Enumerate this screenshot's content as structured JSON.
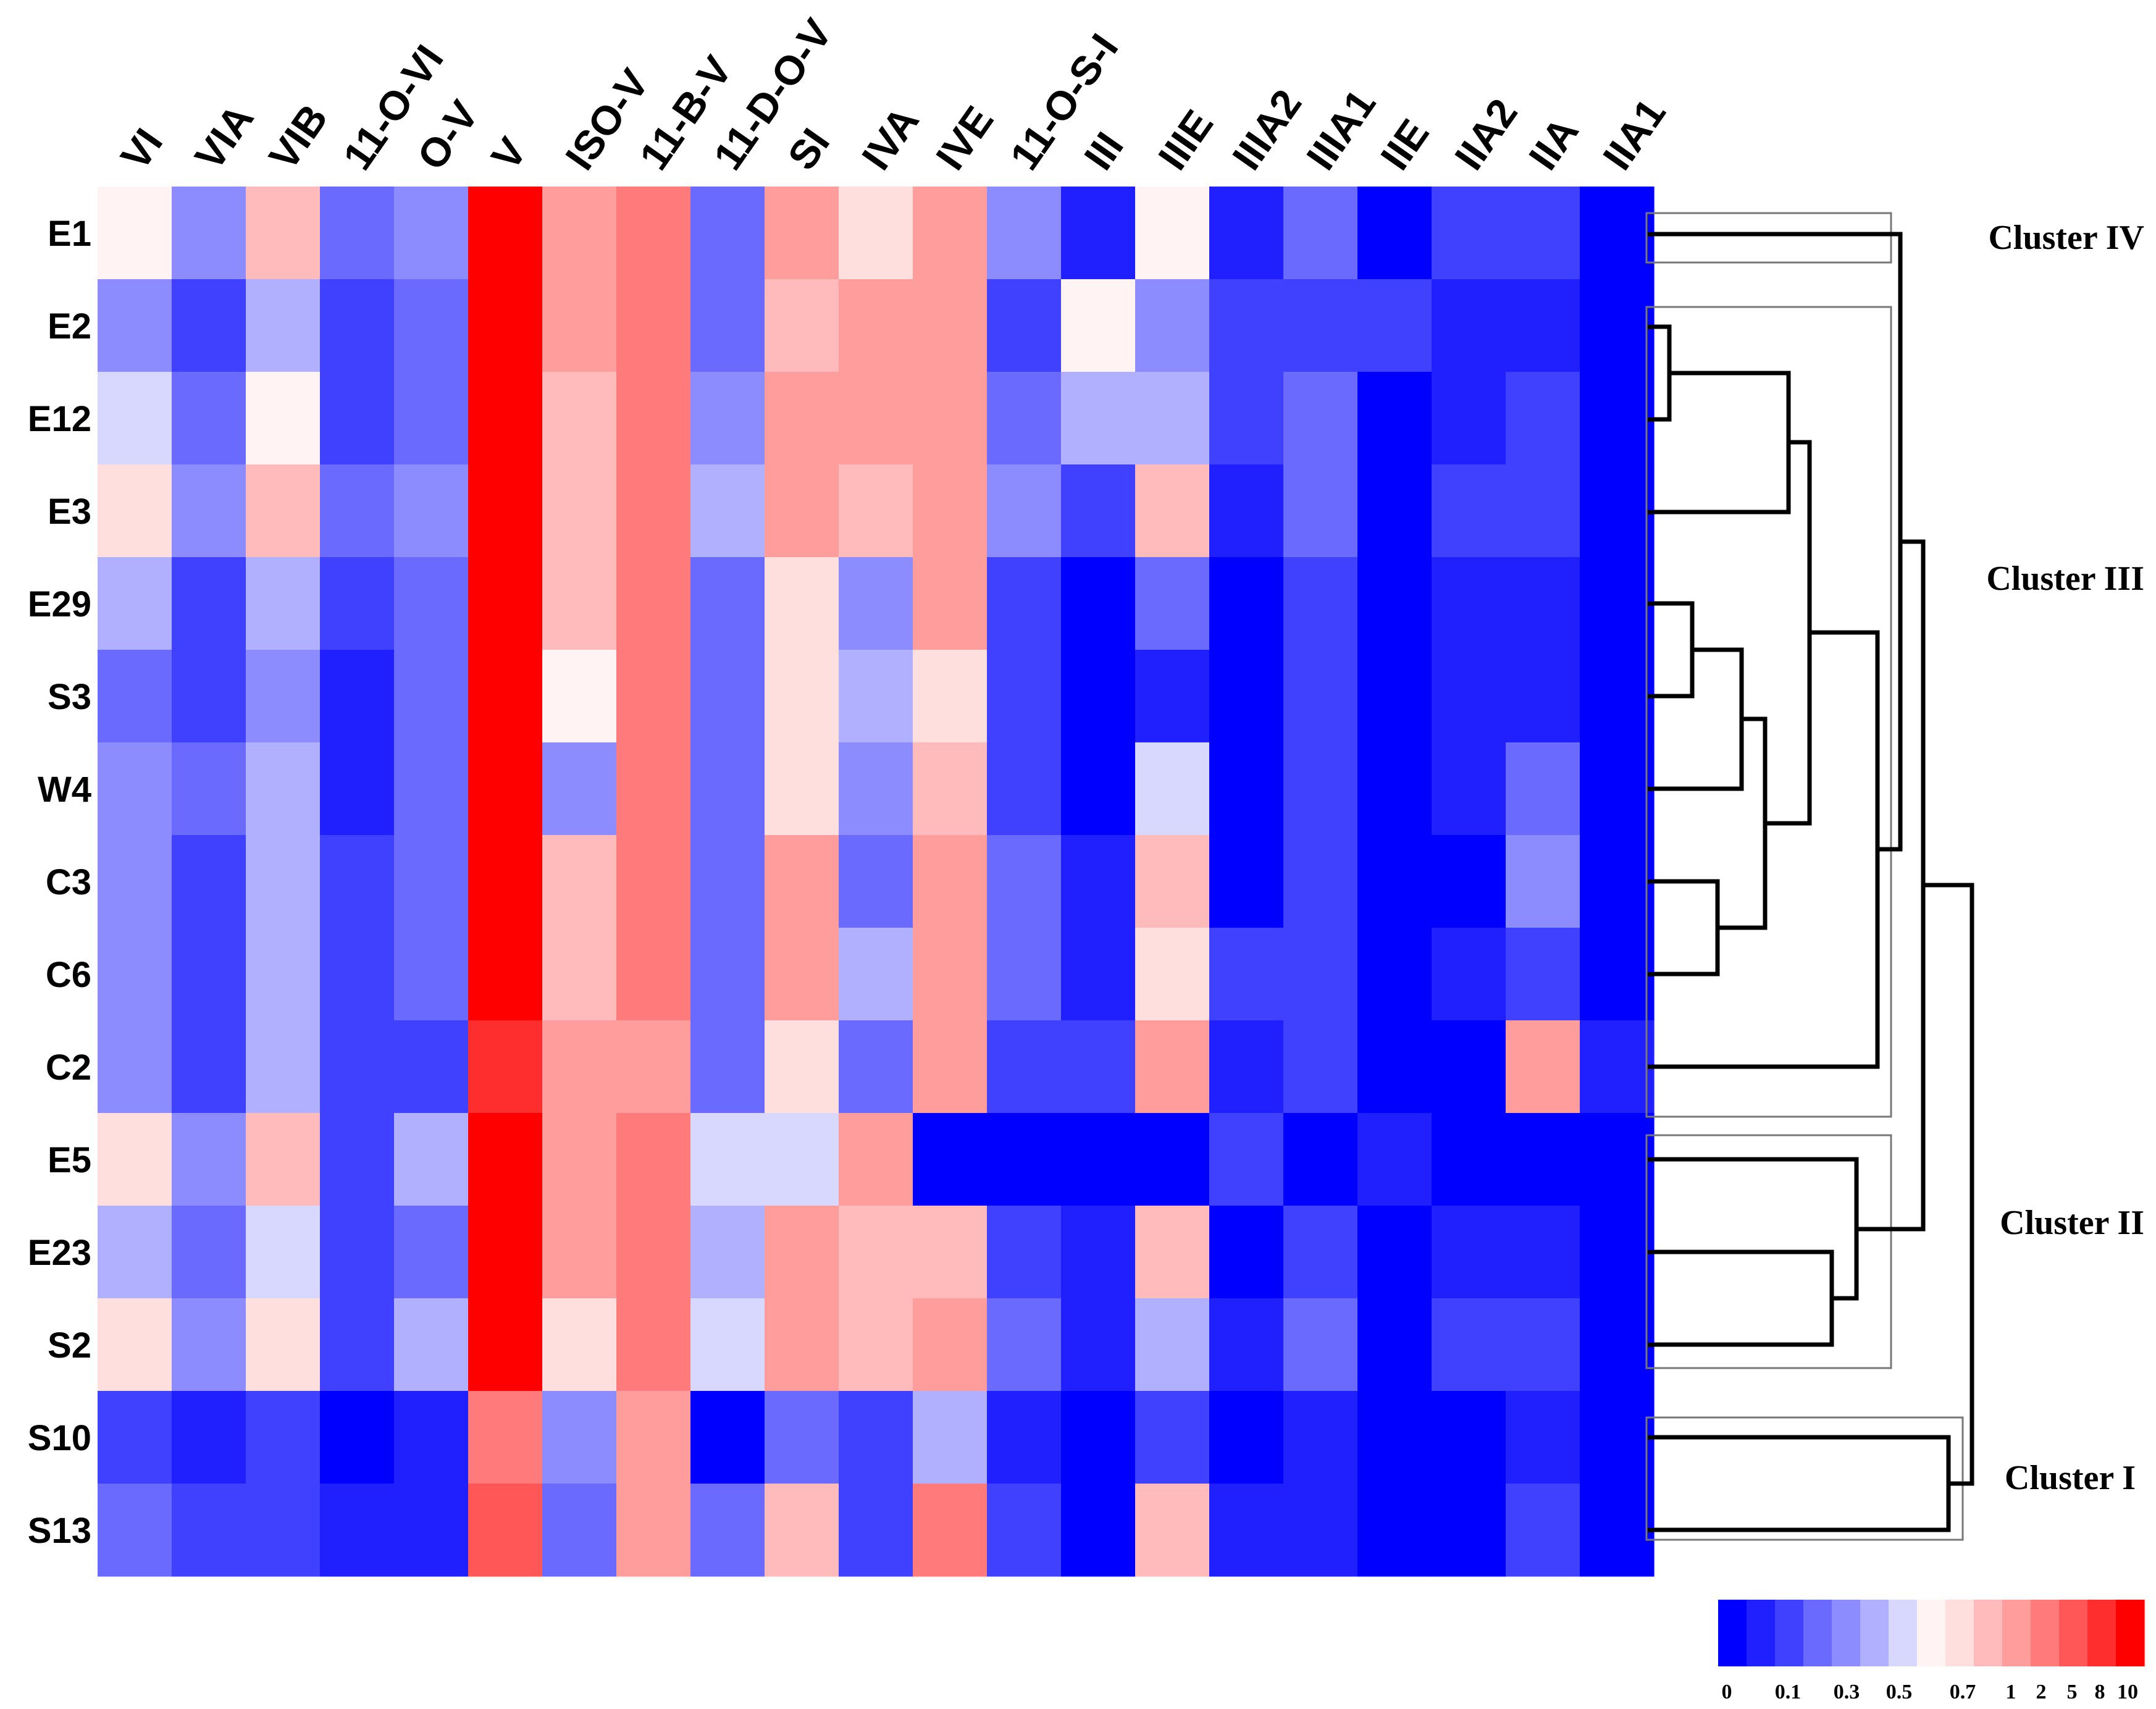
{
  "chart_data": {
    "type": "heatmap",
    "title": "",
    "columns": [
      "VI",
      "VIA",
      "VIB",
      "11-O-VI",
      "O-V",
      "V",
      "ISO-V",
      "11-B-V",
      "11-D-O-V",
      "SI",
      "IVA",
      "IVE",
      "11-O-S-I",
      "III",
      "IIIE",
      "IIIA2",
      "IIIA1",
      "IIE",
      "IIA2",
      "IIA",
      "IIA1"
    ],
    "rows": [
      "E1",
      "E2",
      "E12",
      "E3",
      "E29",
      "S3",
      "W4",
      "C3",
      "C6",
      "C2",
      "E5",
      "E23",
      "S2",
      "S10",
      "S13"
    ],
    "color_scale": {
      "bin_colors": [
        "#0000ff",
        "#2020ff",
        "#4040ff",
        "#6a6aff",
        "#8c8cff",
        "#b0b0ff",
        "#d8d8ff",
        "#fff3f3",
        "#ffdede",
        "#ffbbbb",
        "#ff9c9c",
        "#ff7a7a",
        "#ff5757",
        "#ff2e2e",
        "#ff0000"
      ],
      "tick_labels": [
        "0",
        "0.1",
        "0.3",
        "0.5",
        "0.7",
        "1",
        "2",
        "5",
        "8",
        "10"
      ]
    },
    "values_bin_index": [
      [
        7,
        4,
        9,
        3,
        4,
        14,
        10,
        11,
        3,
        10,
        8,
        10,
        4,
        1,
        7,
        1,
        3,
        0,
        2,
        2,
        0
      ],
      [
        4,
        2,
        5,
        2,
        3,
        14,
        10,
        11,
        3,
        9,
        10,
        10,
        2,
        7,
        4,
        2,
        2,
        2,
        1,
        1,
        0
      ],
      [
        6,
        3,
        7,
        2,
        3,
        14,
        9,
        11,
        4,
        10,
        10,
        10,
        3,
        5,
        5,
        2,
        3,
        0,
        1,
        2,
        0
      ],
      [
        8,
        4,
        9,
        3,
        4,
        14,
        9,
        11,
        5,
        10,
        9,
        10,
        4,
        2,
        9,
        1,
        3,
        0,
        2,
        2,
        0
      ],
      [
        5,
        2,
        5,
        2,
        3,
        14,
        9,
        11,
        3,
        8,
        4,
        10,
        2,
        0,
        3,
        0,
        2,
        0,
        1,
        1,
        0
      ],
      [
        3,
        2,
        4,
        1,
        3,
        14,
        7,
        11,
        3,
        8,
        5,
        8,
        2,
        0,
        1,
        0,
        2,
        0,
        1,
        1,
        0
      ],
      [
        4,
        3,
        5,
        1,
        3,
        14,
        4,
        11,
        3,
        8,
        4,
        9,
        2,
        0,
        6,
        0,
        2,
        0,
        1,
        3,
        0
      ],
      [
        4,
        2,
        5,
        2,
        3,
        14,
        9,
        11,
        3,
        10,
        3,
        10,
        3,
        1,
        9,
        0,
        2,
        0,
        0,
        4,
        0
      ],
      [
        4,
        2,
        5,
        2,
        3,
        14,
        9,
        11,
        3,
        10,
        5,
        10,
        3,
        1,
        8,
        2,
        2,
        0,
        1,
        2,
        0
      ],
      [
        4,
        2,
        5,
        2,
        2,
        13,
        10,
        10,
        3,
        8,
        3,
        10,
        2,
        2,
        10,
        1,
        2,
        0,
        0,
        10,
        1
      ],
      [
        8,
        4,
        9,
        2,
        5,
        14,
        10,
        11,
        6,
        6,
        10,
        0,
        0,
        0,
        0,
        2,
        0,
        1,
        0,
        0,
        0
      ],
      [
        5,
        3,
        6,
        2,
        3,
        14,
        10,
        11,
        5,
        10,
        9,
        9,
        2,
        1,
        9,
        0,
        2,
        0,
        1,
        1,
        0
      ],
      [
        8,
        4,
        8,
        2,
        5,
        14,
        8,
        11,
        6,
        10,
        9,
        10,
        3,
        1,
        5,
        1,
        3,
        0,
        2,
        2,
        0
      ],
      [
        2,
        1,
        2,
        0,
        1,
        11,
        4,
        10,
        0,
        3,
        2,
        5,
        1,
        0,
        2,
        0,
        1,
        0,
        0,
        1,
        0
      ],
      [
        3,
        2,
        2,
        1,
        1,
        12,
        3,
        10,
        3,
        9,
        2,
        11,
        2,
        0,
        9,
        1,
        1,
        0,
        0,
        2,
        0
      ]
    ],
    "clusters": [
      "Cluster IV",
      "Cluster III",
      "Cluster II",
      "Cluster I"
    ],
    "legend": "bottom-right color bar",
    "xlabel": "",
    "ylabel": ""
  }
}
